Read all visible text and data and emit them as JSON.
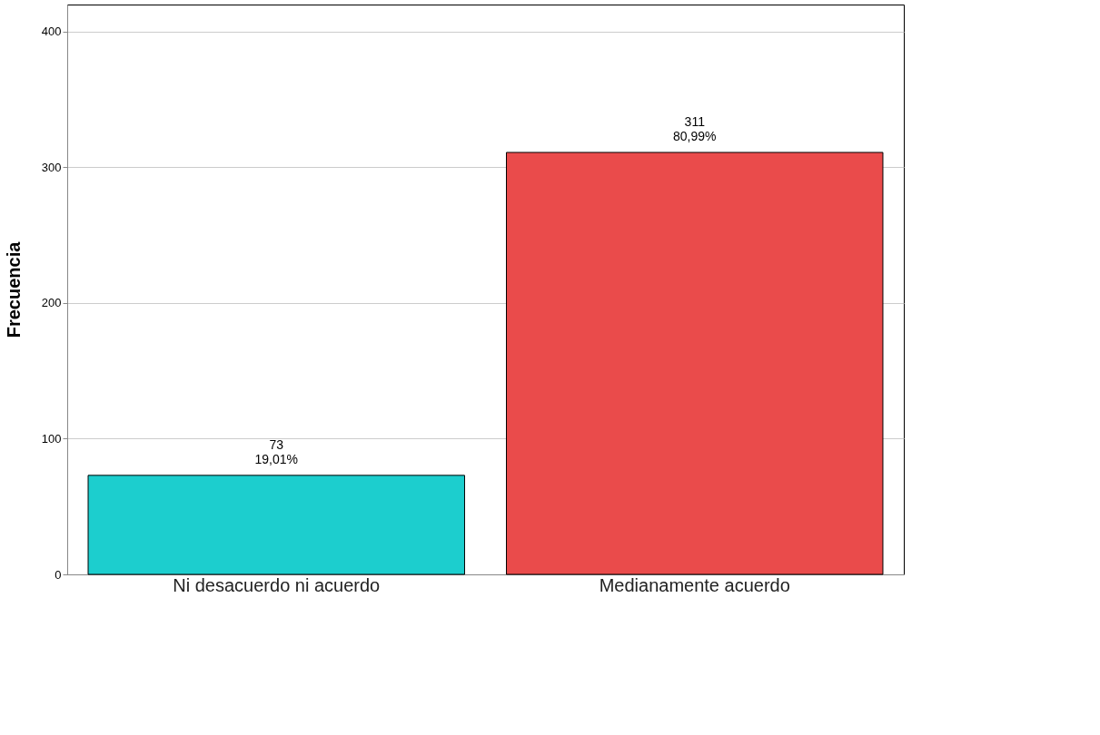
{
  "chart_data": {
    "type": "bar",
    "ylabel": "Frecuencia",
    "categories": [
      "Ni desacuerdo ni acuerdo",
      "Medianamente acuerdo"
    ],
    "values": [
      73,
      311
    ],
    "colors": [
      "#1ccece",
      "#ea4b4b"
    ],
    "value_labels": [
      "73\n19,01%",
      "311\n80,99%"
    ],
    "ylim": [
      0,
      420
    ],
    "yticks": [
      0,
      100,
      200,
      300,
      400
    ],
    "grid": "y",
    "legend": false
  }
}
